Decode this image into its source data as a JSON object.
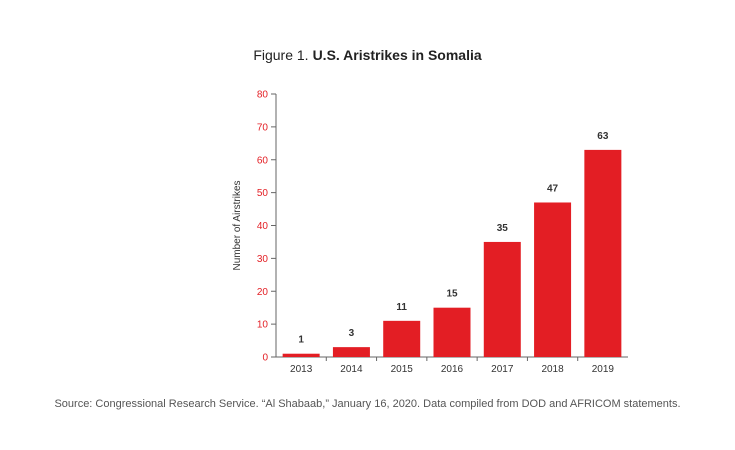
{
  "figure": {
    "prefix": "Figure 1.",
    "title": "U.S. Aristrikes in Somalia",
    "source": "Source: Congressional Research Service. “Al Shabaab,” January 16, 2020. Data compiled from DOD and AFRICOM statements."
  },
  "chart_data": {
    "type": "bar",
    "title": "U.S. Aristrikes in Somalia",
    "xlabel": "",
    "ylabel": "Number of Airstrikes",
    "categories": [
      "2013",
      "2014",
      "2015",
      "2016",
      "2017",
      "2018",
      "2019"
    ],
    "values": [
      1,
      3,
      11,
      15,
      35,
      47,
      63
    ],
    "ylim": [
      0,
      80
    ],
    "yticks": [
      0,
      10,
      20,
      30,
      40,
      50,
      60,
      70,
      80
    ],
    "grid": false,
    "legend": "none",
    "colors": {
      "bar": "#e31e24",
      "axis_ticks": "#e31e24",
      "text": "#333333"
    }
  }
}
